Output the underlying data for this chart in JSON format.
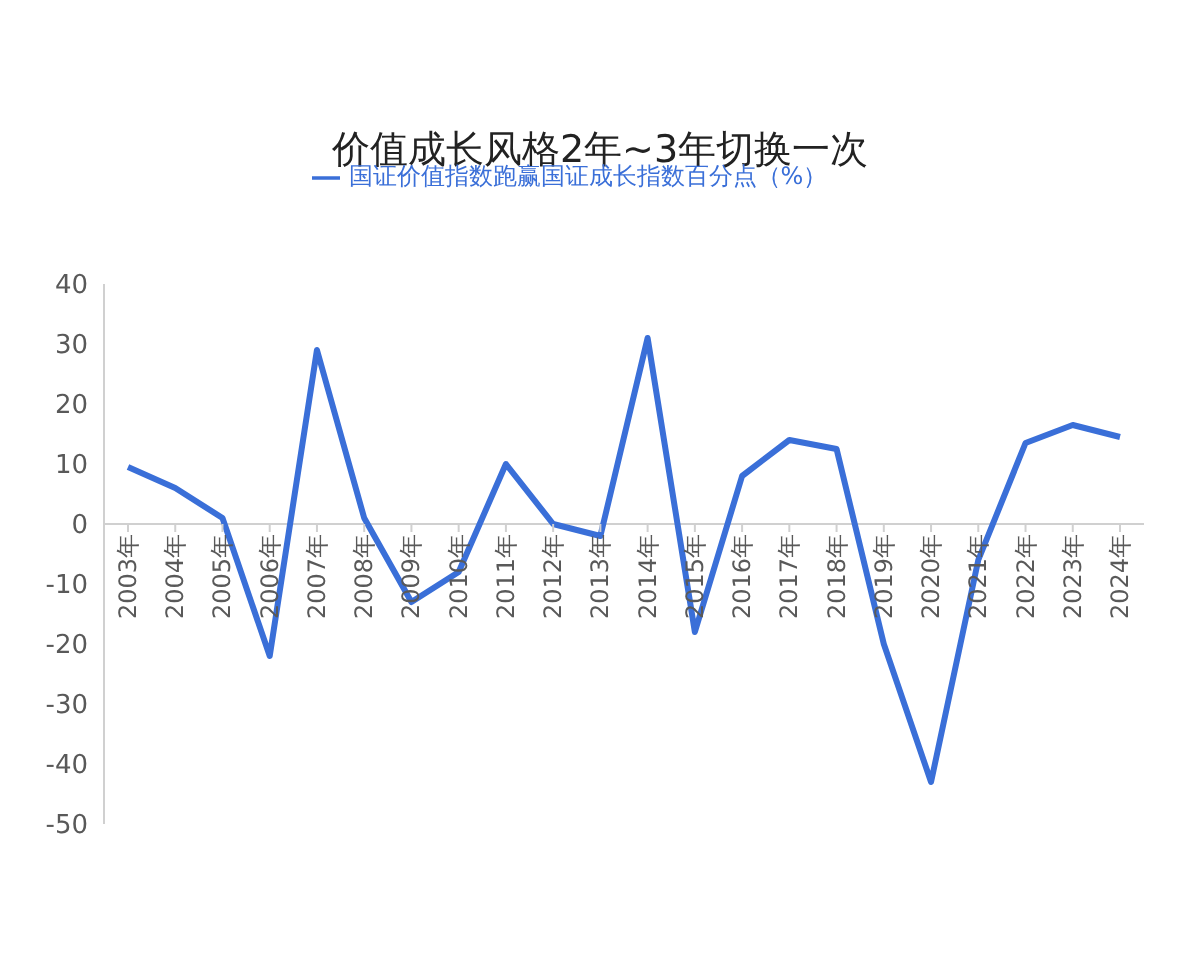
{
  "chart_data": {
    "type": "line",
    "title": "价值成长风格2年~3年切换一次",
    "categories": [
      "2003年",
      "2004年",
      "2005年",
      "2006年",
      "2007年",
      "2008年",
      "2009年",
      "2010年",
      "2011年",
      "2012年",
      "2013年",
      "2014年",
      "2015年",
      "2016年",
      "2017年",
      "2018年",
      "2019年",
      "2020年",
      "2021年",
      "2022年",
      "2023年",
      "2024年"
    ],
    "series": [
      {
        "name": "国证价值指数跑赢国证成长指数百分点（%）",
        "color": "#3a6fd8",
        "values": [
          9.5,
          6,
          1,
          -22,
          29,
          1,
          -13,
          -8,
          10,
          0,
          -2,
          31,
          -18,
          8,
          14,
          12.5,
          -20,
          -43,
          -6,
          13.5,
          16.5,
          14.5
        ]
      }
    ],
    "ylim": [
      -50,
      40
    ],
    "yticks": [
      -50,
      -40,
      -30,
      -20,
      -10,
      0,
      10,
      20,
      30,
      40
    ],
    "grid": false,
    "legend": "top",
    "marker": "none",
    "line_style": "solid"
  }
}
